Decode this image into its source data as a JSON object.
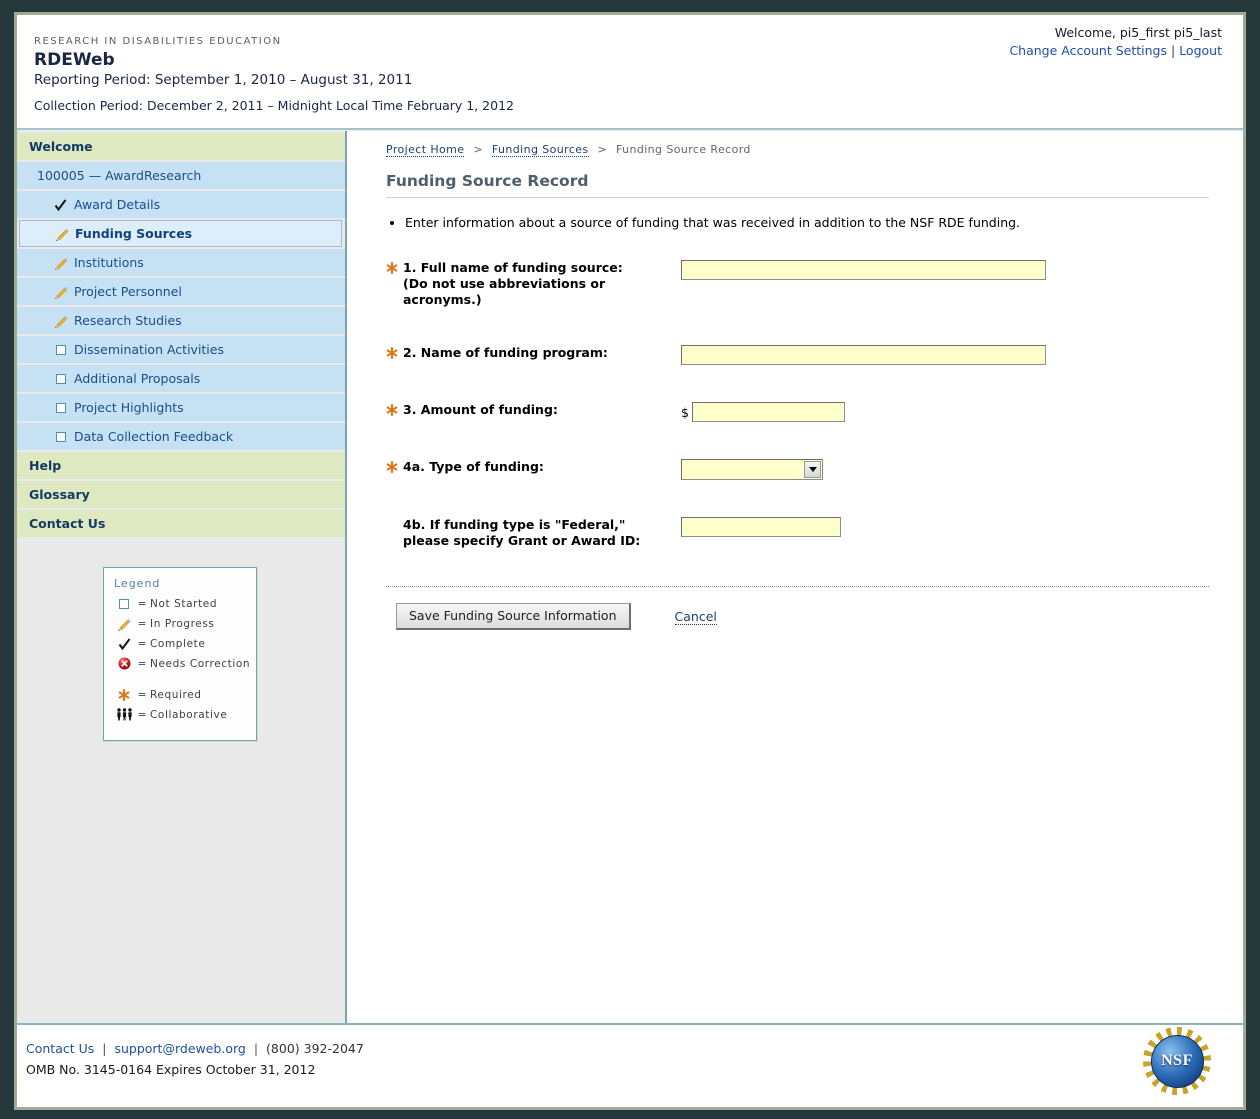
{
  "header": {
    "eyebrow": "RESEARCH IN DISABILITIES EDUCATION",
    "brand": "RDEWeb",
    "reporting_period": "Reporting Period: September 1, 2010 – August 31, 2011",
    "collection_period": "Collection Period: December 2, 2011 – Midnight Local Time February 1, 2012",
    "welcome": "Welcome, pi5_first pi5_last",
    "account_settings_label": "Change Account Settings",
    "link_separator": "|",
    "logout_label": "Logout"
  },
  "sidebar": {
    "welcome_label": "Welcome",
    "award_label": "100005 — AwardResearch",
    "items": [
      {
        "label": "Award Details",
        "status": "complete"
      },
      {
        "label": "Funding Sources",
        "status": "in-progress",
        "selected": true
      },
      {
        "label": "Institutions",
        "status": "in-progress"
      },
      {
        "label": "Project Personnel",
        "status": "in-progress"
      },
      {
        "label": "Research Studies",
        "status": "in-progress"
      },
      {
        "label": "Dissemination Activities",
        "status": "not-started"
      },
      {
        "label": "Additional Proposals",
        "status": "not-started"
      },
      {
        "label": "Project Highlights",
        "status": "not-started"
      },
      {
        "label": "Data Collection Feedback",
        "status": "not-started"
      }
    ],
    "help_label": "Help",
    "glossary_label": "Glossary",
    "contact_label": "Contact Us"
  },
  "legend": {
    "title": "Legend",
    "equals": "=",
    "rows": [
      {
        "icon": "not-started-icon",
        "label": "Not Started"
      },
      {
        "icon": "in-progress-icon",
        "label": "In Progress"
      },
      {
        "icon": "complete-icon",
        "label": "Complete"
      },
      {
        "icon": "needs-correction-icon",
        "label": "Needs Correction"
      },
      {
        "icon": "required-icon",
        "label": "Required"
      },
      {
        "icon": "collaborative-icon",
        "label": "Collaborative"
      }
    ]
  },
  "breadcrumb": {
    "separator": ">",
    "items": [
      {
        "label": "Project Home"
      },
      {
        "label": "Funding Sources"
      },
      {
        "label": "Funding Source Record"
      }
    ]
  },
  "main": {
    "title": "Funding Source Record",
    "instruction": "Enter information about a source of funding that was received in addition to the NSF RDE funding.",
    "currency_symbol": "$",
    "fields": [
      {
        "label": "1. Full name of funding source:",
        "sublabel": "(Do not use abbreviations or acronyms.)",
        "required": true,
        "value": ""
      },
      {
        "label": "2. Name of funding program:",
        "required": true,
        "value": ""
      },
      {
        "label": "3. Amount of funding:",
        "required": true,
        "value": ""
      },
      {
        "label": "4a. Type of funding:",
        "required": true,
        "value": ""
      },
      {
        "label": "4b. If funding type is \"Federal,\"",
        "sublabel": "please specify Grant or Award ID:",
        "required": false,
        "value": ""
      }
    ],
    "save_label": "Save Funding Source Information",
    "cancel_label": "Cancel"
  },
  "footer": {
    "contact_label": "Contact Us",
    "email": "support@rdeweb.org",
    "phone": "(800) 392-2047",
    "separator": "|",
    "omb": "OMB No. 3145-0164 Expires October 31, 2012",
    "nsf_logo_text": "NSF"
  },
  "colors": {
    "page_background": "#25393D",
    "frame_border": "#A2A996",
    "sidebar_green": "#DEE9C2",
    "sidebar_blue": "#C6E1F3",
    "sidebar_selected": "#DDEEFA",
    "input_background": "#FFFFCC",
    "link_blue": "#1E4FA3",
    "required_orange": "#E0761A"
  }
}
